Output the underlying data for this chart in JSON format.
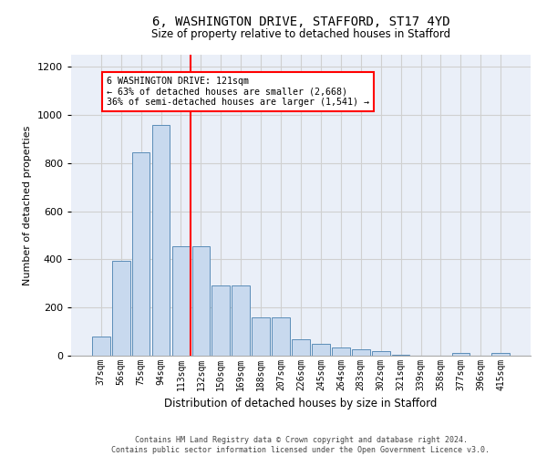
{
  "title1": "6, WASHINGTON DRIVE, STAFFORD, ST17 4YD",
  "title2": "Size of property relative to detached houses in Stafford",
  "xlabel": "Distribution of detached houses by size in Stafford",
  "ylabel": "Number of detached properties",
  "categories": [
    "37sqm",
    "56sqm",
    "75sqm",
    "94sqm",
    "113sqm",
    "132sqm",
    "150sqm",
    "169sqm",
    "188sqm",
    "207sqm",
    "226sqm",
    "245sqm",
    "264sqm",
    "283sqm",
    "302sqm",
    "321sqm",
    "339sqm",
    "358sqm",
    "377sqm",
    "396sqm",
    "415sqm"
  ],
  "values": [
    80,
    395,
    845,
    960,
    455,
    455,
    290,
    290,
    160,
    160,
    70,
    50,
    35,
    25,
    20,
    5,
    0,
    0,
    10,
    0,
    10
  ],
  "bar_color": "#c8d9ee",
  "bar_edge_color": "#5b8db8",
  "annotation_box_text": "6 WASHINGTON DRIVE: 121sqm\n← 63% of detached houses are smaller (2,668)\n36% of semi-detached houses are larger (1,541) →",
  "annotation_box_color": "white",
  "annotation_box_edge_color": "red",
  "vline_color": "red",
  "vline_x_index": 4,
  "ylim": [
    0,
    1250
  ],
  "yticks": [
    0,
    200,
    400,
    600,
    800,
    1000,
    1200
  ],
  "footnote": "Contains HM Land Registry data © Crown copyright and database right 2024.\nContains public sector information licensed under the Open Government Licence v3.0.",
  "grid_color": "#d0d0d0",
  "background_color": "#eaeff8"
}
